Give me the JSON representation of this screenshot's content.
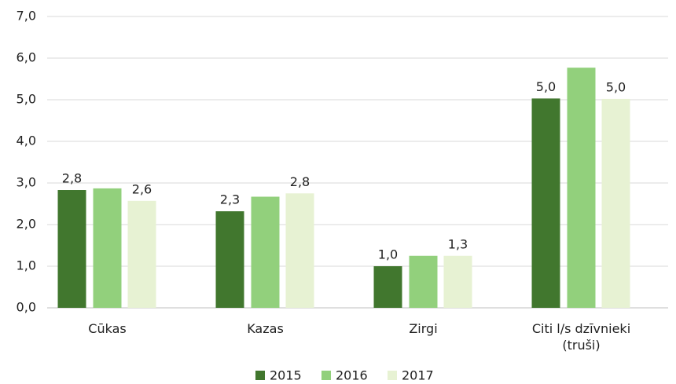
{
  "chart_data": {
    "type": "bar",
    "categories": [
      "Cūkas",
      "Kazas",
      "Zirgi",
      "Citi l/s dzīvnieki (truši)"
    ],
    "series": [
      {
        "name": "2015",
        "color": "#41772e",
        "values": [
          2.83,
          2.32,
          1.0,
          5.03
        ],
        "value_labels": [
          "2,8",
          "2,3",
          "1,0",
          "5,0"
        ]
      },
      {
        "name": "2016",
        "color": "#92d07c",
        "values": [
          2.87,
          2.67,
          1.25,
          5.77
        ],
        "value_labels": [
          null,
          null,
          null,
          null
        ]
      },
      {
        "name": "2017",
        "color": "#e7f2d3",
        "values": [
          2.57,
          2.75,
          1.25,
          5.02
        ],
        "value_labels": [
          "2,6",
          "2,8",
          "1,3",
          "5,0"
        ]
      }
    ],
    "ylim": [
      0,
      7
    ],
    "yticks": [
      {
        "value": 0,
        "label": "0,0"
      },
      {
        "value": 1,
        "label": "1,0"
      },
      {
        "value": 2,
        "label": "2,0"
      },
      {
        "value": 3,
        "label": "3,0"
      },
      {
        "value": 4,
        "label": "4,0"
      },
      {
        "value": 5,
        "label": "5,0"
      },
      {
        "value": 6,
        "label": "6,0"
      },
      {
        "value": 7,
        "label": "7,0"
      }
    ],
    "grid": true,
    "legend": "bottom"
  }
}
